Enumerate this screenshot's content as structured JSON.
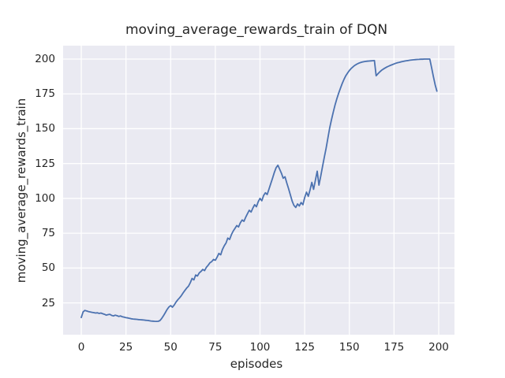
{
  "chart_data": {
    "type": "line",
    "title": "moving_average_rewards_train of DQN",
    "xlabel": "episodes",
    "ylabel": "moving_average_rewards_train",
    "xticks": [
      0,
      25,
      50,
      75,
      100,
      125,
      150,
      175,
      200
    ],
    "yticks": [
      25,
      50,
      75,
      100,
      125,
      150,
      175,
      200
    ],
    "xlim": [
      -10,
      208
    ],
    "ylim": [
      2,
      209
    ],
    "grid": true,
    "legend": false,
    "colors": {
      "line": "#4c72b0",
      "plot_background": "#eaeaf2",
      "figure_background": "#ffffff",
      "gridline": "#ffffff",
      "text": "#262626"
    },
    "series": [
      {
        "name": "moving_average_rewards_train",
        "x_start": 0,
        "x_step": 1,
        "values": [
          14.5,
          18.5,
          19.6,
          19.2,
          18.8,
          18.5,
          18.2,
          18.0,
          17.7,
          17.9,
          17.4,
          17.7,
          17.2,
          16.8,
          16.2,
          16.6,
          16.8,
          16.0,
          15.6,
          16.2,
          15.8,
          15.3,
          15.6,
          15.0,
          14.7,
          14.4,
          14.2,
          13.9,
          13.6,
          13.4,
          13.3,
          13.2,
          13.0,
          12.9,
          12.8,
          12.7,
          12.5,
          12.4,
          12.2,
          12.0,
          11.9,
          11.8,
          11.7,
          11.8,
          12.3,
          13.8,
          15.8,
          18.0,
          20.2,
          22.0,
          23.0,
          21.9,
          23.5,
          25.5,
          27.2,
          28.6,
          30.2,
          32.2,
          34.0,
          35.6,
          37.0,
          39.5,
          42.5,
          41.5,
          45.0,
          44.3,
          46.5,
          47.6,
          49.0,
          48.2,
          50.5,
          52.0,
          53.8,
          54.6,
          56.2,
          55.6,
          57.8,
          60.5,
          59.5,
          63.3,
          66.0,
          68.0,
          71.5,
          70.5,
          74.0,
          76.5,
          78.5,
          80.5,
          79.5,
          82.5,
          84.5,
          83.5,
          86.5,
          89.0,
          91.5,
          90.2,
          93.0,
          95.5,
          94.0,
          97.5,
          100.0,
          98.3,
          102.0,
          104.0,
          102.8,
          106.5,
          110.5,
          114.5,
          118.5,
          122.0,
          123.8,
          121.0,
          118.0,
          114.5,
          115.5,
          111.0,
          107.0,
          102.5,
          98.0,
          95.0,
          93.5,
          96.0,
          94.5,
          97.0,
          95.5,
          100.5,
          104.5,
          101.5,
          106.0,
          111.5,
          106.5,
          113.0,
          119.5,
          109.5,
          116.0,
          123.0,
          129.5,
          136.0,
          143.5,
          150.5,
          156.5,
          162.0,
          167.0,
          171.5,
          175.5,
          179.0,
          182.5,
          185.5,
          188.0,
          190.0,
          191.8,
          193.2,
          194.4,
          195.4,
          196.2,
          196.9,
          197.4,
          197.8,
          198.1,
          198.3,
          198.5,
          198.6,
          198.7,
          198.8,
          198.9,
          188.0,
          189.5,
          190.8,
          191.9,
          192.8,
          193.6,
          194.3,
          194.9,
          195.5,
          196.0,
          196.5,
          197.0,
          197.4,
          197.7,
          198.0,
          198.3,
          198.6,
          198.8,
          199.0,
          199.2,
          199.4,
          199.5,
          199.6,
          199.7,
          199.8,
          199.9,
          199.9,
          200.0,
          200.0,
          200.0,
          200.0,
          194.0,
          187.5,
          181.5,
          177.0
        ]
      }
    ]
  }
}
